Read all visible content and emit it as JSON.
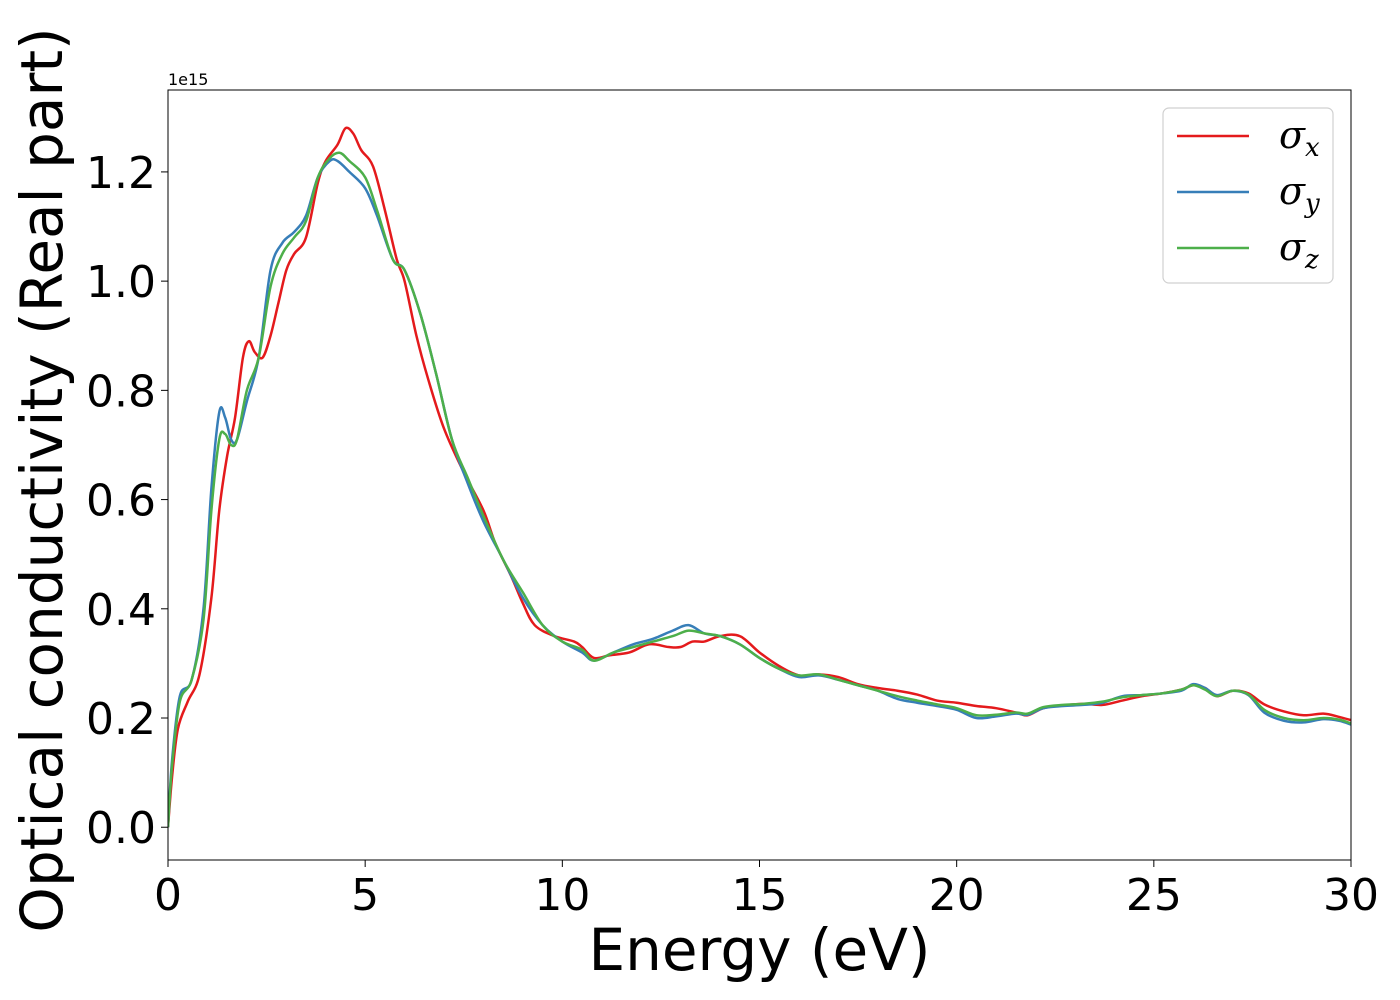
{
  "chart_data": {
    "type": "line",
    "xlabel": "Energy (eV)",
    "ylabel": "Optical conductivity (Real part)",
    "offset_text": "1e15",
    "xlim": [
      0,
      30
    ],
    "ylim": [
      -0.06,
      1.35
    ],
    "x_ticks": [
      0,
      5,
      10,
      15,
      20,
      25,
      30
    ],
    "x_tick_labels": [
      "0",
      "5",
      "10",
      "15",
      "20",
      "25",
      "30"
    ],
    "y_ticks": [
      0.0,
      0.2,
      0.4,
      0.6,
      0.8,
      1.0,
      1.2
    ],
    "y_tick_labels": [
      "0.0",
      "0.2",
      "0.4",
      "0.6",
      "0.8",
      "1.0",
      "1.2"
    ],
    "grid": false,
    "legend_position": "top-right",
    "series": [
      {
        "name": "σx",
        "legend_symbol": "σ",
        "legend_subscript": "x",
        "color": "#e41a1c",
        "points": [
          [
            0,
            0
          ],
          [
            0.1,
            0.09
          ],
          [
            0.25,
            0.18
          ],
          [
            0.5,
            0.23
          ],
          [
            0.8,
            0.28
          ],
          [
            1.1,
            0.42
          ],
          [
            1.3,
            0.58
          ],
          [
            1.5,
            0.68
          ],
          [
            1.7,
            0.75
          ],
          [
            1.9,
            0.86
          ],
          [
            2.05,
            0.89
          ],
          [
            2.2,
            0.87
          ],
          [
            2.4,
            0.86
          ],
          [
            2.6,
            0.9
          ],
          [
            2.8,
            0.96
          ],
          [
            3.0,
            1.02
          ],
          [
            3.2,
            1.05
          ],
          [
            3.5,
            1.08
          ],
          [
            3.8,
            1.18
          ],
          [
            4.0,
            1.22
          ],
          [
            4.3,
            1.25
          ],
          [
            4.5,
            1.28
          ],
          [
            4.7,
            1.27
          ],
          [
            4.9,
            1.24
          ],
          [
            5.2,
            1.21
          ],
          [
            5.5,
            1.13
          ],
          [
            5.8,
            1.04
          ],
          [
            6.0,
            1.0
          ],
          [
            6.3,
            0.9
          ],
          [
            6.6,
            0.82
          ],
          [
            7.0,
            0.73
          ],
          [
            7.5,
            0.65
          ],
          [
            8.0,
            0.58
          ],
          [
            8.3,
            0.52
          ],
          [
            8.7,
            0.46
          ],
          [
            9.0,
            0.41
          ],
          [
            9.3,
            0.37
          ],
          [
            9.8,
            0.35
          ],
          [
            10.3,
            0.34
          ],
          [
            10.5,
            0.33
          ],
          [
            10.8,
            0.31
          ],
          [
            11.2,
            0.315
          ],
          [
            11.7,
            0.32
          ],
          [
            12.2,
            0.335
          ],
          [
            12.7,
            0.33
          ],
          [
            13.0,
            0.33
          ],
          [
            13.3,
            0.34
          ],
          [
            13.6,
            0.34
          ],
          [
            14.0,
            0.35
          ],
          [
            14.5,
            0.35
          ],
          [
            15.0,
            0.32
          ],
          [
            15.5,
            0.295
          ],
          [
            16.0,
            0.278
          ],
          [
            16.5,
            0.28
          ],
          [
            17.0,
            0.275
          ],
          [
            17.5,
            0.262
          ],
          [
            18.0,
            0.255
          ],
          [
            18.5,
            0.25
          ],
          [
            19.0,
            0.243
          ],
          [
            19.5,
            0.232
          ],
          [
            20.0,
            0.228
          ],
          [
            20.5,
            0.222
          ],
          [
            21.0,
            0.218
          ],
          [
            21.5,
            0.21
          ],
          [
            21.8,
            0.205
          ],
          [
            22.2,
            0.218
          ],
          [
            22.7,
            0.223
          ],
          [
            23.2,
            0.226
          ],
          [
            23.7,
            0.224
          ],
          [
            24.2,
            0.232
          ],
          [
            24.7,
            0.24
          ],
          [
            25.2,
            0.245
          ],
          [
            25.7,
            0.252
          ],
          [
            26.0,
            0.26
          ],
          [
            26.3,
            0.255
          ],
          [
            26.6,
            0.24
          ],
          [
            27.0,
            0.25
          ],
          [
            27.4,
            0.245
          ],
          [
            27.8,
            0.225
          ],
          [
            28.3,
            0.212
          ],
          [
            28.8,
            0.205
          ],
          [
            29.3,
            0.208
          ],
          [
            29.7,
            0.202
          ],
          [
            30.0,
            0.196
          ]
        ]
      },
      {
        "name": "σy",
        "legend_symbol": "σ",
        "legend_subscript": "y",
        "color": "#377eb8",
        "points": [
          [
            0,
            0
          ],
          [
            0.1,
            0.12
          ],
          [
            0.3,
            0.24
          ],
          [
            0.6,
            0.27
          ],
          [
            0.9,
            0.4
          ],
          [
            1.1,
            0.62
          ],
          [
            1.3,
            0.76
          ],
          [
            1.45,
            0.75
          ],
          [
            1.6,
            0.71
          ],
          [
            1.75,
            0.71
          ],
          [
            2.0,
            0.78
          ],
          [
            2.3,
            0.86
          ],
          [
            2.6,
            1.02
          ],
          [
            2.9,
            1.07
          ],
          [
            3.2,
            1.09
          ],
          [
            3.5,
            1.12
          ],
          [
            3.8,
            1.19
          ],
          [
            4.1,
            1.22
          ],
          [
            4.3,
            1.22
          ],
          [
            4.6,
            1.2
          ],
          [
            5.0,
            1.17
          ],
          [
            5.3,
            1.12
          ],
          [
            5.7,
            1.04
          ],
          [
            6.0,
            1.02
          ],
          [
            6.4,
            0.94
          ],
          [
            6.8,
            0.83
          ],
          [
            7.2,
            0.71
          ],
          [
            7.6,
            0.63
          ],
          [
            8.0,
            0.56
          ],
          [
            8.5,
            0.49
          ],
          [
            9.0,
            0.42
          ],
          [
            9.5,
            0.37
          ],
          [
            10.0,
            0.34
          ],
          [
            10.5,
            0.32
          ],
          [
            10.8,
            0.305
          ],
          [
            11.3,
            0.32
          ],
          [
            11.8,
            0.335
          ],
          [
            12.3,
            0.345
          ],
          [
            12.8,
            0.36
          ],
          [
            13.2,
            0.37
          ],
          [
            13.6,
            0.355
          ],
          [
            14.0,
            0.35
          ],
          [
            14.5,
            0.335
          ],
          [
            15.0,
            0.31
          ],
          [
            15.5,
            0.29
          ],
          [
            16.0,
            0.275
          ],
          [
            16.5,
            0.278
          ],
          [
            17.0,
            0.27
          ],
          [
            17.5,
            0.26
          ],
          [
            18.0,
            0.25
          ],
          [
            18.5,
            0.235
          ],
          [
            19.0,
            0.228
          ],
          [
            19.5,
            0.222
          ],
          [
            20.0,
            0.215
          ],
          [
            20.5,
            0.2
          ],
          [
            21.0,
            0.203
          ],
          [
            21.5,
            0.208
          ],
          [
            21.8,
            0.206
          ],
          [
            22.2,
            0.218
          ],
          [
            22.7,
            0.222
          ],
          [
            23.2,
            0.224
          ],
          [
            23.7,
            0.228
          ],
          [
            24.2,
            0.24
          ],
          [
            24.7,
            0.242
          ],
          [
            25.2,
            0.245
          ],
          [
            25.7,
            0.25
          ],
          [
            26.0,
            0.262
          ],
          [
            26.3,
            0.255
          ],
          [
            26.6,
            0.242
          ],
          [
            27.0,
            0.25
          ],
          [
            27.4,
            0.242
          ],
          [
            27.8,
            0.21
          ],
          [
            28.3,
            0.195
          ],
          [
            28.8,
            0.192
          ],
          [
            29.3,
            0.198
          ],
          [
            29.7,
            0.195
          ],
          [
            30.0,
            0.188
          ]
        ]
      },
      {
        "name": "σz",
        "legend_symbol": "σ",
        "legend_subscript": "z",
        "color": "#4daf4a",
        "points": [
          [
            0,
            0
          ],
          [
            0.1,
            0.11
          ],
          [
            0.3,
            0.23
          ],
          [
            0.6,
            0.27
          ],
          [
            0.9,
            0.38
          ],
          [
            1.1,
            0.58
          ],
          [
            1.3,
            0.71
          ],
          [
            1.45,
            0.72
          ],
          [
            1.6,
            0.7
          ],
          [
            1.75,
            0.71
          ],
          [
            2.0,
            0.8
          ],
          [
            2.3,
            0.86
          ],
          [
            2.6,
            0.99
          ],
          [
            2.9,
            1.05
          ],
          [
            3.2,
            1.08
          ],
          [
            3.5,
            1.11
          ],
          [
            3.8,
            1.19
          ],
          [
            4.1,
            1.225
          ],
          [
            4.35,
            1.235
          ],
          [
            4.6,
            1.22
          ],
          [
            5.0,
            1.19
          ],
          [
            5.3,
            1.13
          ],
          [
            5.7,
            1.04
          ],
          [
            6.0,
            1.02
          ],
          [
            6.4,
            0.94
          ],
          [
            6.8,
            0.83
          ],
          [
            7.2,
            0.71
          ],
          [
            7.6,
            0.64
          ],
          [
            8.0,
            0.57
          ],
          [
            8.5,
            0.49
          ],
          [
            9.0,
            0.43
          ],
          [
            9.5,
            0.37
          ],
          [
            10.0,
            0.34
          ],
          [
            10.5,
            0.325
          ],
          [
            10.8,
            0.305
          ],
          [
            11.3,
            0.32
          ],
          [
            11.8,
            0.33
          ],
          [
            12.3,
            0.34
          ],
          [
            12.8,
            0.35
          ],
          [
            13.2,
            0.36
          ],
          [
            13.6,
            0.355
          ],
          [
            14.0,
            0.35
          ],
          [
            14.5,
            0.335
          ],
          [
            15.0,
            0.31
          ],
          [
            15.5,
            0.29
          ],
          [
            16.0,
            0.278
          ],
          [
            16.5,
            0.28
          ],
          [
            17.0,
            0.27
          ],
          [
            17.5,
            0.26
          ],
          [
            18.0,
            0.25
          ],
          [
            18.5,
            0.24
          ],
          [
            19.0,
            0.232
          ],
          [
            19.5,
            0.225
          ],
          [
            20.0,
            0.218
          ],
          [
            20.5,
            0.205
          ],
          [
            21.0,
            0.206
          ],
          [
            21.5,
            0.21
          ],
          [
            21.8,
            0.208
          ],
          [
            22.2,
            0.22
          ],
          [
            22.7,
            0.224
          ],
          [
            23.2,
            0.226
          ],
          [
            23.7,
            0.23
          ],
          [
            24.2,
            0.238
          ],
          [
            24.7,
            0.242
          ],
          [
            25.2,
            0.245
          ],
          [
            25.7,
            0.252
          ],
          [
            26.0,
            0.26
          ],
          [
            26.3,
            0.252
          ],
          [
            26.6,
            0.24
          ],
          [
            27.0,
            0.25
          ],
          [
            27.4,
            0.243
          ],
          [
            27.8,
            0.215
          ],
          [
            28.3,
            0.2
          ],
          [
            28.8,
            0.196
          ],
          [
            29.3,
            0.2
          ],
          [
            29.7,
            0.197
          ],
          [
            30.0,
            0.19
          ]
        ]
      }
    ]
  }
}
